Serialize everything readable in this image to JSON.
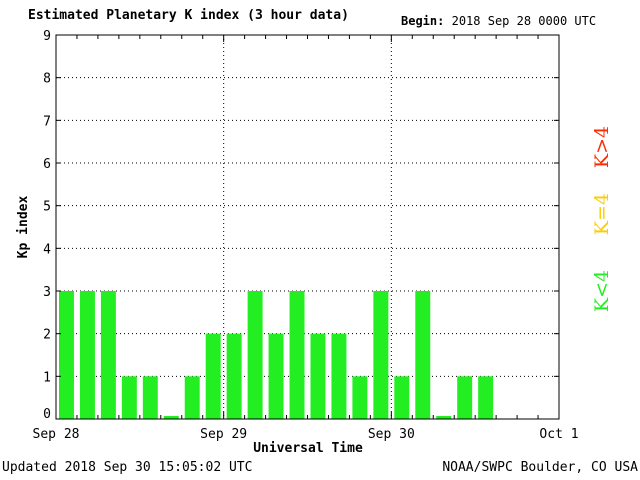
{
  "header": {
    "title": "Estimated Planetary K index (3 hour data)",
    "begin_label": "Begin:",
    "begin_value": "2018 Sep 28 0000 UTC"
  },
  "footer": {
    "updated": "Updated 2018 Sep 30 15:05:02 UTC",
    "source": "NOAA/SWPC Boulder, CO USA"
  },
  "legend": [
    {
      "label": "K>4",
      "color": "#ff2a00"
    },
    {
      "label": "K=4",
      "color": "#ffcc00"
    },
    {
      "label": "K<4",
      "color": "#22ee22"
    }
  ],
  "chart_data": {
    "type": "bar",
    "title": "Estimated Planetary K index (3 hour data)",
    "xlabel": "Universal Time",
    "ylabel": "Kp index",
    "ylim": [
      0,
      9
    ],
    "yticks": [
      0,
      1,
      2,
      3,
      4,
      5,
      6,
      7,
      8,
      9
    ],
    "xtick_labels": [
      "Sep 28",
      "Sep 29",
      "Sep 30",
      "Oct 1"
    ],
    "interval_hours": 3,
    "values": [
      3,
      3,
      3,
      1,
      1,
      0.07,
      1,
      2,
      2,
      3,
      2,
      3,
      2,
      2,
      1,
      3,
      1,
      3,
      0.07,
      1,
      1
    ],
    "bar_color": "#22ee22",
    "grid": true
  }
}
